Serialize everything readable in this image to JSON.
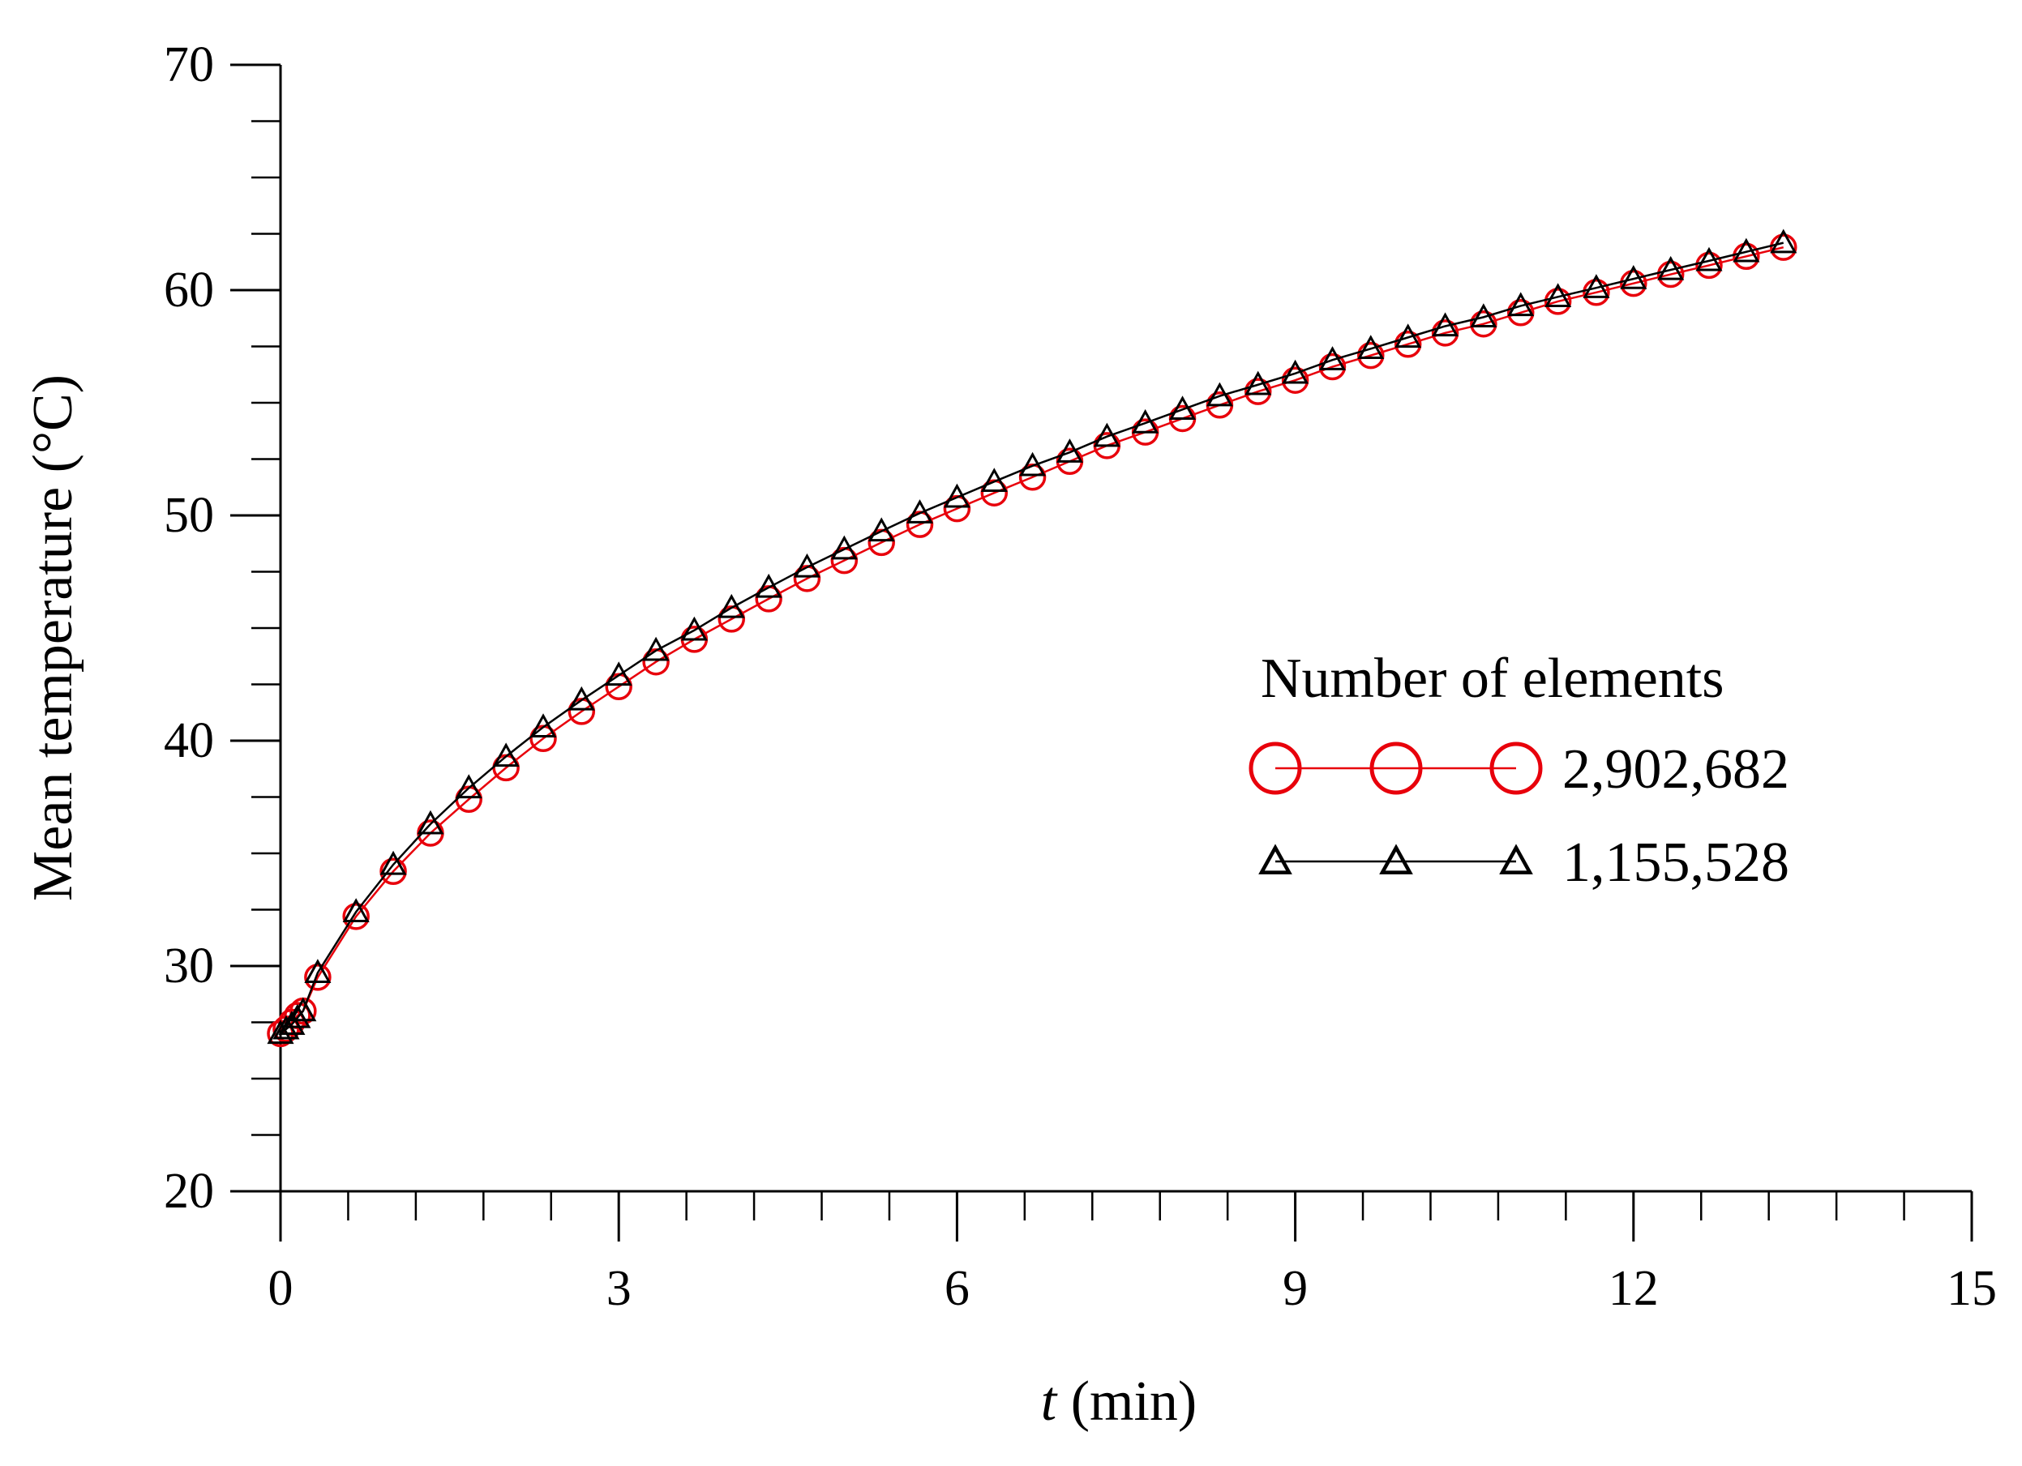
{
  "chart_data": {
    "type": "line",
    "title": "",
    "xlabel_italic": "t",
    "xlabel_rest": " (min)",
    "ylabel": "Mean temperature (°C)",
    "xlim": [
      0,
      15
    ],
    "ylim": [
      20,
      70
    ],
    "x_ticks": [
      0,
      3,
      6,
      9,
      12,
      15
    ],
    "x_tick_labels": [
      "0",
      "3",
      "6",
      "9",
      "12",
      "15"
    ],
    "x_minor_step": 0.6,
    "y_ticks": [
      20,
      30,
      40,
      50,
      60,
      70
    ],
    "y_tick_labels": [
      "20",
      "30",
      "40",
      "50",
      "60",
      "70"
    ],
    "y_minor_step": 2.5,
    "grid": false,
    "legend_title": "Number of elements",
    "legend_position": "right",
    "series": [
      {
        "name": "2,902,682",
        "color": "#e8000b",
        "marker": "circle",
        "x": [
          0.0,
          0.05,
          0.1,
          0.15,
          0.2,
          0.33,
          0.67,
          1.0,
          1.33,
          1.67,
          2.0,
          2.33,
          2.67,
          3.0,
          3.33,
          3.67,
          4.0,
          4.33,
          4.67,
          5.0,
          5.33,
          5.67,
          6.0,
          6.33,
          6.67,
          7.0,
          7.33,
          7.67,
          8.0,
          8.33,
          8.67,
          9.0,
          9.33,
          9.67,
          10.0,
          10.33,
          10.67,
          11.0,
          11.33,
          11.67,
          12.0,
          12.33,
          12.67,
          13.0,
          13.33
        ],
        "y": [
          27.0,
          27.2,
          27.5,
          27.8,
          28.0,
          29.5,
          32.2,
          34.2,
          35.9,
          37.4,
          38.8,
          40.1,
          41.3,
          42.4,
          43.5,
          44.5,
          45.4,
          46.3,
          47.2,
          48.0,
          48.8,
          49.6,
          50.3,
          51.0,
          51.7,
          52.4,
          53.1,
          53.7,
          54.3,
          54.9,
          55.5,
          56.0,
          56.6,
          57.1,
          57.6,
          58.1,
          58.5,
          59.0,
          59.5,
          59.9,
          60.3,
          60.7,
          61.1,
          61.5,
          61.9
        ]
      },
      {
        "name": "1,155,528",
        "color": "#000000",
        "marker": "triangle",
        "x": [
          0.0,
          0.05,
          0.1,
          0.15,
          0.2,
          0.33,
          0.67,
          1.0,
          1.33,
          1.67,
          2.0,
          2.33,
          2.67,
          3.0,
          3.33,
          3.67,
          4.0,
          4.33,
          4.67,
          5.0,
          5.33,
          5.67,
          6.0,
          6.33,
          6.67,
          7.0,
          7.33,
          7.67,
          8.0,
          8.33,
          8.67,
          9.0,
          9.33,
          9.67,
          10.0,
          10.33,
          10.67,
          11.0,
          11.33,
          11.67,
          12.0,
          12.33,
          12.67,
          13.0,
          13.33
        ],
        "y": [
          27.0,
          27.2,
          27.4,
          27.7,
          28.0,
          29.7,
          32.4,
          34.5,
          36.3,
          37.9,
          39.3,
          40.6,
          41.8,
          42.9,
          44.0,
          44.9,
          45.9,
          46.8,
          47.7,
          48.5,
          49.3,
          50.1,
          50.8,
          51.5,
          52.2,
          52.8,
          53.5,
          54.1,
          54.7,
          55.3,
          55.8,
          56.3,
          56.9,
          57.4,
          57.9,
          58.4,
          58.8,
          59.3,
          59.7,
          60.1,
          60.5,
          60.9,
          61.3,
          61.7,
          62.1
        ]
      }
    ]
  }
}
